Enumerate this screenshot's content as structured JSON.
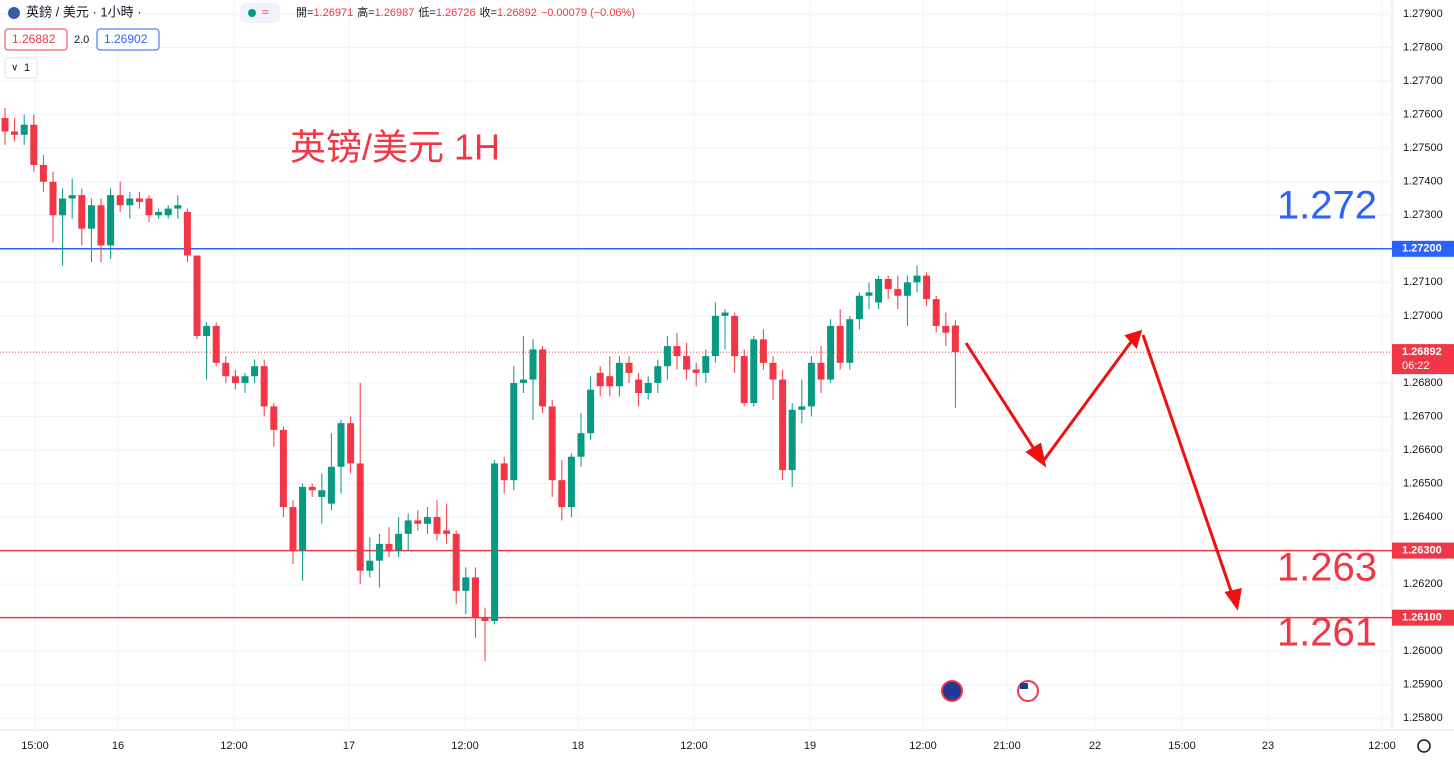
{
  "header": {
    "symbol": "英鎊 / 美元 · 1小時 ·",
    "open_label": "開=",
    "open": "1.26971",
    "high_label": "高=",
    "high": "1.26987",
    "low_label": "低=",
    "low": "1.26726",
    "close_label": "收=",
    "close": "1.26892",
    "change": "−0.00079 (−0.06%)",
    "bid": "1.26882",
    "spread": "2.0",
    "ask": "1.26902",
    "indicator_count": "1"
  },
  "chart_data": {
    "type": "candlestick",
    "title": "英镑/美元 1H",
    "up_color": "#089981",
    "down_color": "#f23645",
    "ylim": [
      1.25765,
      1.27942
    ],
    "yticks": [
      {
        "value": 1.279,
        "label": "1.27900"
      },
      {
        "value": 1.278,
        "label": "1.27800"
      },
      {
        "value": 1.277,
        "label": "1.27700"
      },
      {
        "value": 1.276,
        "label": "1.27600"
      },
      {
        "value": 1.275,
        "label": "1.27500"
      },
      {
        "value": 1.274,
        "label": "1.27400"
      },
      {
        "value": 1.273,
        "label": "1.27300"
      },
      {
        "value": 1.271,
        "label": "1.27100"
      },
      {
        "value": 1.27,
        "label": "1.27000"
      },
      {
        "value": 1.268,
        "label": "1.26800"
      },
      {
        "value": 1.267,
        "label": "1.26700"
      },
      {
        "value": 1.266,
        "label": "1.26600"
      },
      {
        "value": 1.265,
        "label": "1.26500"
      },
      {
        "value": 1.264,
        "label": "1.26400"
      },
      {
        "value": 1.262,
        "label": "1.26200"
      },
      {
        "value": 1.26,
        "label": "1.26000"
      },
      {
        "value": 1.259,
        "label": "1.25900"
      },
      {
        "value": 1.258,
        "label": "1.25800"
      }
    ],
    "xticks": [
      "15:00",
      "16",
      "12:00",
      "17",
      "12:00",
      "18",
      "12:00",
      "19",
      "12:00",
      "21:00",
      "22",
      "15:00",
      "23",
      "12:00"
    ],
    "grid": true,
    "ohlc": [
      [
        1.2759,
        1.2762,
        1.2751,
        1.2755
      ],
      [
        1.2755,
        1.2759,
        1.2752,
        1.2754
      ],
      [
        1.2754,
        1.276,
        1.2751,
        1.2757
      ],
      [
        1.2757,
        1.276,
        1.2743,
        1.2745
      ],
      [
        1.2745,
        1.2748,
        1.2737,
        1.274
      ],
      [
        1.274,
        1.2743,
        1.2722,
        1.273
      ],
      [
        1.273,
        1.2738,
        1.2715,
        1.2735
      ],
      [
        1.2735,
        1.2741,
        1.2729,
        1.2736
      ],
      [
        1.2736,
        1.2738,
        1.2721,
        1.2726
      ],
      [
        1.2726,
        1.2735,
        1.2716,
        1.2733
      ],
      [
        1.2733,
        1.2735,
        1.2716,
        1.2721
      ],
      [
        1.2721,
        1.2738,
        1.2717,
        1.2736
      ],
      [
        1.2736,
        1.274,
        1.2731,
        1.2733
      ],
      [
        1.2733,
        1.2737,
        1.2729,
        1.2735
      ],
      [
        1.2735,
        1.2737,
        1.2732,
        1.2734
      ],
      [
        1.2735,
        1.2736,
        1.2728,
        1.273
      ],
      [
        1.273,
        1.2732,
        1.2729,
        1.2731
      ],
      [
        1.273,
        1.2733,
        1.2729,
        1.2732
      ],
      [
        1.2732,
        1.2736,
        1.2729,
        1.2733
      ],
      [
        1.2731,
        1.2732,
        1.2716,
        1.2718
      ],
      [
        1.2718,
        1.2718,
        1.2693,
        1.2694
      ],
      [
        1.2694,
        1.2698,
        1.2681,
        1.2697
      ],
      [
        1.2697,
        1.2698,
        1.2685,
        1.2686
      ],
      [
        1.2686,
        1.2688,
        1.268,
        1.2682
      ],
      [
        1.2682,
        1.2684,
        1.2678,
        1.268
      ],
      [
        1.268,
        1.2683,
        1.2677,
        1.2682
      ],
      [
        1.2682,
        1.2687,
        1.268,
        1.2685
      ],
      [
        1.2685,
        1.2687,
        1.267,
        1.2673
      ],
      [
        1.2673,
        1.2674,
        1.2661,
        1.2666
      ],
      [
        1.2666,
        1.2667,
        1.264,
        1.2643
      ],
      [
        1.2643,
        1.2645,
        1.2626,
        1.263
      ],
      [
        1.263,
        1.265,
        1.2621,
        1.2649
      ],
      [
        1.2649,
        1.265,
        1.2646,
        1.2648
      ],
      [
        1.2646,
        1.2653,
        1.2638,
        1.2648
      ],
      [
        1.2644,
        1.2665,
        1.2642,
        1.2655
      ],
      [
        1.2655,
        1.2669,
        1.2647,
        1.2668
      ],
      [
        1.2668,
        1.267,
        1.2653,
        1.2656
      ],
      [
        1.2656,
        1.268,
        1.262,
        1.2624
      ],
      [
        1.2624,
        1.2634,
        1.2622,
        1.2627
      ],
      [
        1.2627,
        1.2635,
        1.2619,
        1.2632
      ],
      [
        1.2632,
        1.2637,
        1.2628,
        1.263
      ],
      [
        1.263,
        1.264,
        1.2628,
        1.2635
      ],
      [
        1.2635,
        1.2641,
        1.263,
        1.2639
      ],
      [
        1.2639,
        1.2642,
        1.2636,
        1.2638
      ],
      [
        1.2638,
        1.2643,
        1.2635,
        1.264
      ],
      [
        1.264,
        1.2645,
        1.2633,
        1.2635
      ],
      [
        1.2636,
        1.2644,
        1.2632,
        1.2635
      ],
      [
        1.2635,
        1.2636,
        1.2614,
        1.2618
      ],
      [
        1.2618,
        1.2625,
        1.2611,
        1.2622
      ],
      [
        1.2622,
        1.2625,
        1.2604,
        1.261
      ],
      [
        1.261,
        1.2613,
        1.2597,
        1.2609
      ],
      [
        1.2609,
        1.2657,
        1.2608,
        1.2656
      ],
      [
        1.2656,
        1.2658,
        1.2647,
        1.2651
      ],
      [
        1.2651,
        1.2685,
        1.2648,
        1.268
      ],
      [
        1.268,
        1.2694,
        1.2677,
        1.2681
      ],
      [
        1.2681,
        1.2693,
        1.2669,
        1.269
      ],
      [
        1.269,
        1.2691,
        1.2671,
        1.2673
      ],
      [
        1.2673,
        1.2675,
        1.2646,
        1.2651
      ],
      [
        1.2651,
        1.2657,
        1.2639,
        1.2643
      ],
      [
        1.2643,
        1.2659,
        1.264,
        1.2658
      ],
      [
        1.2658,
        1.2671,
        1.2655,
        1.2665
      ],
      [
        1.2665,
        1.2682,
        1.2663,
        1.2678
      ],
      [
        1.2683,
        1.2685,
        1.2676,
        1.2679
      ],
      [
        1.2682,
        1.2688,
        1.2676,
        1.2679
      ],
      [
        1.2679,
        1.2688,
        1.2676,
        1.2686
      ],
      [
        1.2686,
        1.2688,
        1.268,
        1.2683
      ],
      [
        1.2681,
        1.2683,
        1.2673,
        1.2677
      ],
      [
        1.2677,
        1.2682,
        1.2675,
        1.268
      ],
      [
        1.268,
        1.2687,
        1.2677,
        1.2685
      ],
      [
        1.2685,
        1.2694,
        1.2681,
        1.2691
      ],
      [
        1.2691,
        1.2695,
        1.2684,
        1.2688
      ],
      [
        1.2688,
        1.2692,
        1.2681,
        1.2684
      ],
      [
        1.2684,
        1.2686,
        1.2679,
        1.2683
      ],
      [
        1.2683,
        1.269,
        1.268,
        1.2688
      ],
      [
        1.2688,
        1.2704,
        1.2686,
        1.27
      ],
      [
        1.27,
        1.2702,
        1.269,
        1.2701
      ],
      [
        1.27,
        1.2701,
        1.2683,
        1.2688
      ],
      [
        1.2688,
        1.269,
        1.2673,
        1.2674
      ],
      [
        1.2674,
        1.2694,
        1.2673,
        1.2693
      ],
      [
        1.2693,
        1.2696,
        1.2684,
        1.2686
      ],
      [
        1.2686,
        1.2688,
        1.2675,
        1.2681
      ],
      [
        1.2681,
        1.2684,
        1.2651,
        1.2654
      ],
      [
        1.2654,
        1.2674,
        1.2649,
        1.2672
      ],
      [
        1.2672,
        1.2681,
        1.2668,
        1.2673
      ],
      [
        1.2673,
        1.2688,
        1.267,
        1.2686
      ],
      [
        1.2686,
        1.2691,
        1.2677,
        1.2681
      ],
      [
        1.2681,
        1.2699,
        1.268,
        1.2697
      ],
      [
        1.2697,
        1.2702,
        1.2684,
        1.2686
      ],
      [
        1.2686,
        1.27,
        1.2684,
        1.2699
      ],
      [
        1.2699,
        1.2707,
        1.2696,
        1.2706
      ],
      [
        1.2706,
        1.271,
        1.2702,
        1.2707
      ],
      [
        1.2704,
        1.2712,
        1.2702,
        1.2711
      ],
      [
        1.2711,
        1.2712,
        1.2705,
        1.2708
      ],
      [
        1.2708,
        1.2712,
        1.2702,
        1.2706
      ],
      [
        1.2706,
        1.2712,
        1.2697,
        1.271
      ],
      [
        1.271,
        1.2715,
        1.2707,
        1.2712
      ],
      [
        1.2712,
        1.2713,
        1.2703,
        1.2705
      ],
      [
        1.2705,
        1.2706,
        1.2695,
        1.2697
      ],
      [
        1.2697,
        1.2701,
        1.2691,
        1.2695
      ],
      [
        1.26971,
        1.26987,
        1.26726,
        1.26892
      ]
    ],
    "levels": [
      {
        "value": 1.272,
        "label": "1.27200",
        "color": "#2962ff",
        "annotation": "1.272"
      },
      {
        "value": 1.263,
        "label": "1.26300",
        "color": "#f23645",
        "annotation": "1.263"
      },
      {
        "value": 1.261,
        "label": "1.26100",
        "color": "#f23645",
        "annotation": "1.261"
      }
    ],
    "last_price": {
      "value": 1.26892,
      "label": "1.26892",
      "countdown": "06:22",
      "color": "#f23645"
    }
  }
}
